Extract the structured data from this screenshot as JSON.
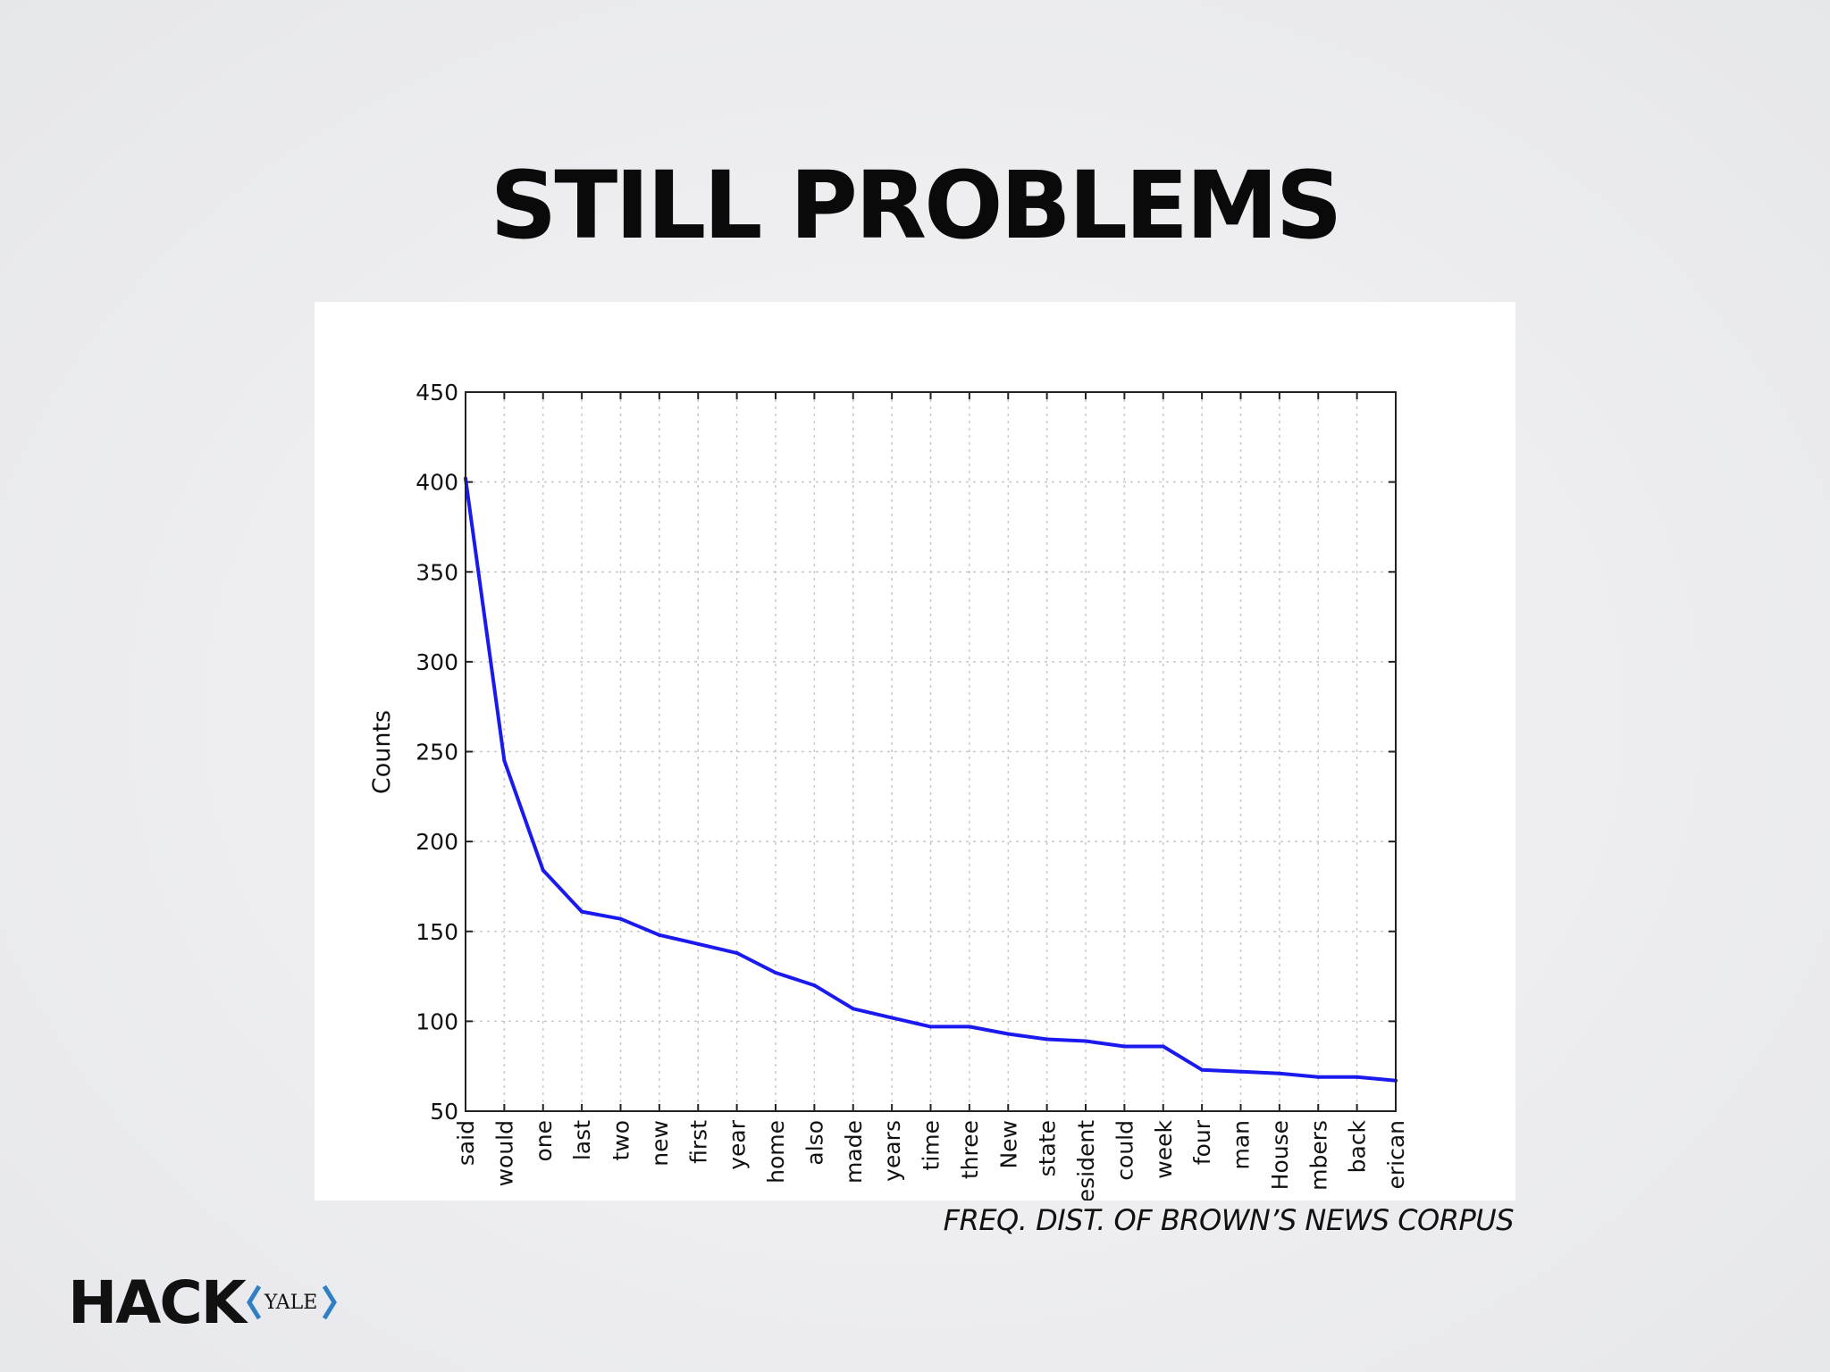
{
  "title": "STILL PROBLEMS",
  "caption": "FREQ. DIST. OF BROWN’S NEWS CORPUS",
  "logo": {
    "text": "HACK",
    "subtext": "YALE",
    "accent": "#2f7fc4"
  },
  "chart_data": {
    "type": "line",
    "ylabel": "Counts",
    "xlabel": "",
    "ylim": [
      50,
      450
    ],
    "yticks": [
      50,
      100,
      150,
      200,
      250,
      300,
      350,
      400,
      450
    ],
    "grid": true,
    "line_color": "#1a1aee",
    "categories": [
      "said",
      "would",
      "one",
      "last",
      "two",
      "new",
      "first",
      "year",
      "home",
      "also",
      "made",
      "years",
      "time",
      "three",
      "New",
      "state",
      "President",
      "could",
      "week",
      "four",
      "man",
      "House",
      "members",
      "back",
      "American"
    ],
    "tick_labels_visible": [
      "said",
      "would",
      "one",
      "last",
      "two",
      "new",
      "first",
      "year",
      "home",
      "also",
      "made",
      "years",
      "time",
      "three",
      "New",
      "state",
      "esident",
      "could",
      "week",
      "four",
      "man",
      "House",
      "mbers",
      "back",
      "erican"
    ],
    "values": [
      402,
      245,
      184,
      161,
      157,
      148,
      143,
      138,
      127,
      120,
      107,
      102,
      97,
      97,
      93,
      90,
      89,
      86,
      86,
      73,
      72,
      71,
      69,
      69,
      67
    ]
  }
}
